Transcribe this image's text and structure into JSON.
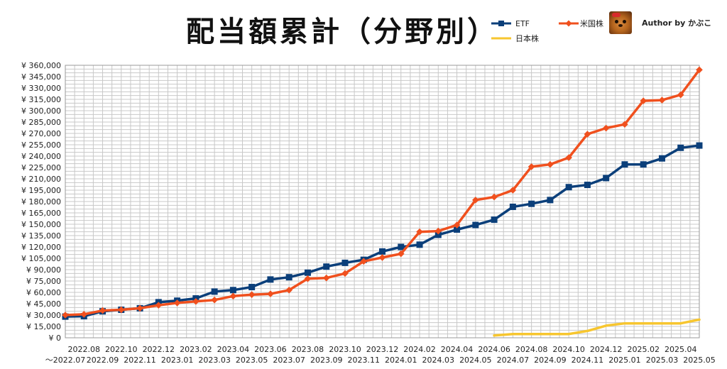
{
  "chart_data": {
    "type": "line",
    "title": "配当額累計（分野別）",
    "author": "Author by かぶこ",
    "y_ticks": [
      "¥ 0",
      "¥ 15,000",
      "¥ 30,000",
      "¥ 45,000",
      "¥ 60,000",
      "¥ 75,000",
      "¥ 90,000",
      "¥ 105,000",
      "¥ 120,000",
      "¥ 135,000",
      "¥ 150,000",
      "¥ 165,000",
      "¥ 180,000",
      "¥ 195,000",
      "¥ 210,000",
      "¥ 225,000",
      "¥ 240,000",
      "¥ 255,000",
      "¥ 270,000",
      "¥ 285,000",
      "¥ 300,000",
      "¥ 315,000",
      "¥ 330,000",
      "¥ 345,000",
      "¥ 360,000"
    ],
    "x_labels_upper": [
      "2022.08",
      "2022.10",
      "2022.12",
      "2023.02",
      "2023.04",
      "2023.06",
      "2023.08",
      "2023.10",
      "2023.12",
      "2024.02",
      "2024.04",
      "2024.06",
      "2024.08",
      "2024.10",
      "2024.12",
      "2025.02",
      "2025.04"
    ],
    "x_labels_lower": [
      "～2022.07",
      "2022.09",
      "2022.11",
      "2023.01",
      "2023.03",
      "2023.05",
      "2023.07",
      "2023.09",
      "2023.11",
      "2024.01",
      "2024.03",
      "2024.05",
      "2024.07",
      "2024.09",
      "2024.11",
      "2025.01",
      "2025.03",
      "2025.05"
    ],
    "categories": [
      "～2022.07",
      "2022.08",
      "2022.09",
      "2022.10",
      "2022.11",
      "2022.12",
      "2023.01",
      "2023.02",
      "2023.03",
      "2023.04",
      "2023.05",
      "2023.06",
      "2023.07",
      "2023.08",
      "2023.09",
      "2023.10",
      "2023.11",
      "2023.12",
      "2024.01",
      "2024.02",
      "2024.03",
      "2024.04",
      "2024.05",
      "2024.06",
      "2024.07",
      "2024.08",
      "2024.09",
      "2024.10",
      "2024.11",
      "2024.12",
      "2025.01",
      "2025.02",
      "2025.03",
      "2025.04",
      "2025.05"
    ],
    "ylim": [
      0,
      360000
    ],
    "grid": true,
    "legend_position": "top-right",
    "series": [
      {
        "name": "ETF",
        "color": "#0b3f7a",
        "marker": "square",
        "values": [
          28000,
          28500,
          35000,
          37000,
          39000,
          47000,
          49000,
          52000,
          61000,
          63000,
          67000,
          77000,
          80000,
          86000,
          94000,
          99000,
          103000,
          114000,
          120000,
          123000,
          136000,
          143000,
          149000,
          156000,
          173000,
          177000,
          182000,
          199000,
          202000,
          211000,
          229000,
          229000,
          237000,
          251000,
          254000
        ]
      },
      {
        "name": "米国株",
        "color": "#f0501e",
        "marker": "diamond",
        "values": [
          30000,
          31000,
          36000,
          37000,
          39000,
          43000,
          46000,
          48000,
          50000,
          55000,
          57000,
          58000,
          63000,
          78000,
          79000,
          85000,
          101000,
          106000,
          111000,
          140000,
          141000,
          149000,
          182000,
          186000,
          195000,
          226000,
          229000,
          238000,
          269000,
          277000,
          282000,
          313000,
          314000,
          321000,
          354000
        ]
      },
      {
        "name": "日本株",
        "color": "#f7c62f",
        "marker": "none",
        "values": [
          null,
          null,
          null,
          null,
          null,
          null,
          null,
          null,
          null,
          null,
          null,
          null,
          null,
          null,
          null,
          null,
          null,
          null,
          null,
          null,
          null,
          null,
          null,
          3000,
          5000,
          5000,
          5000,
          5000,
          9000,
          16000,
          19000,
          19000,
          19000,
          19000,
          24000
        ]
      }
    ]
  }
}
